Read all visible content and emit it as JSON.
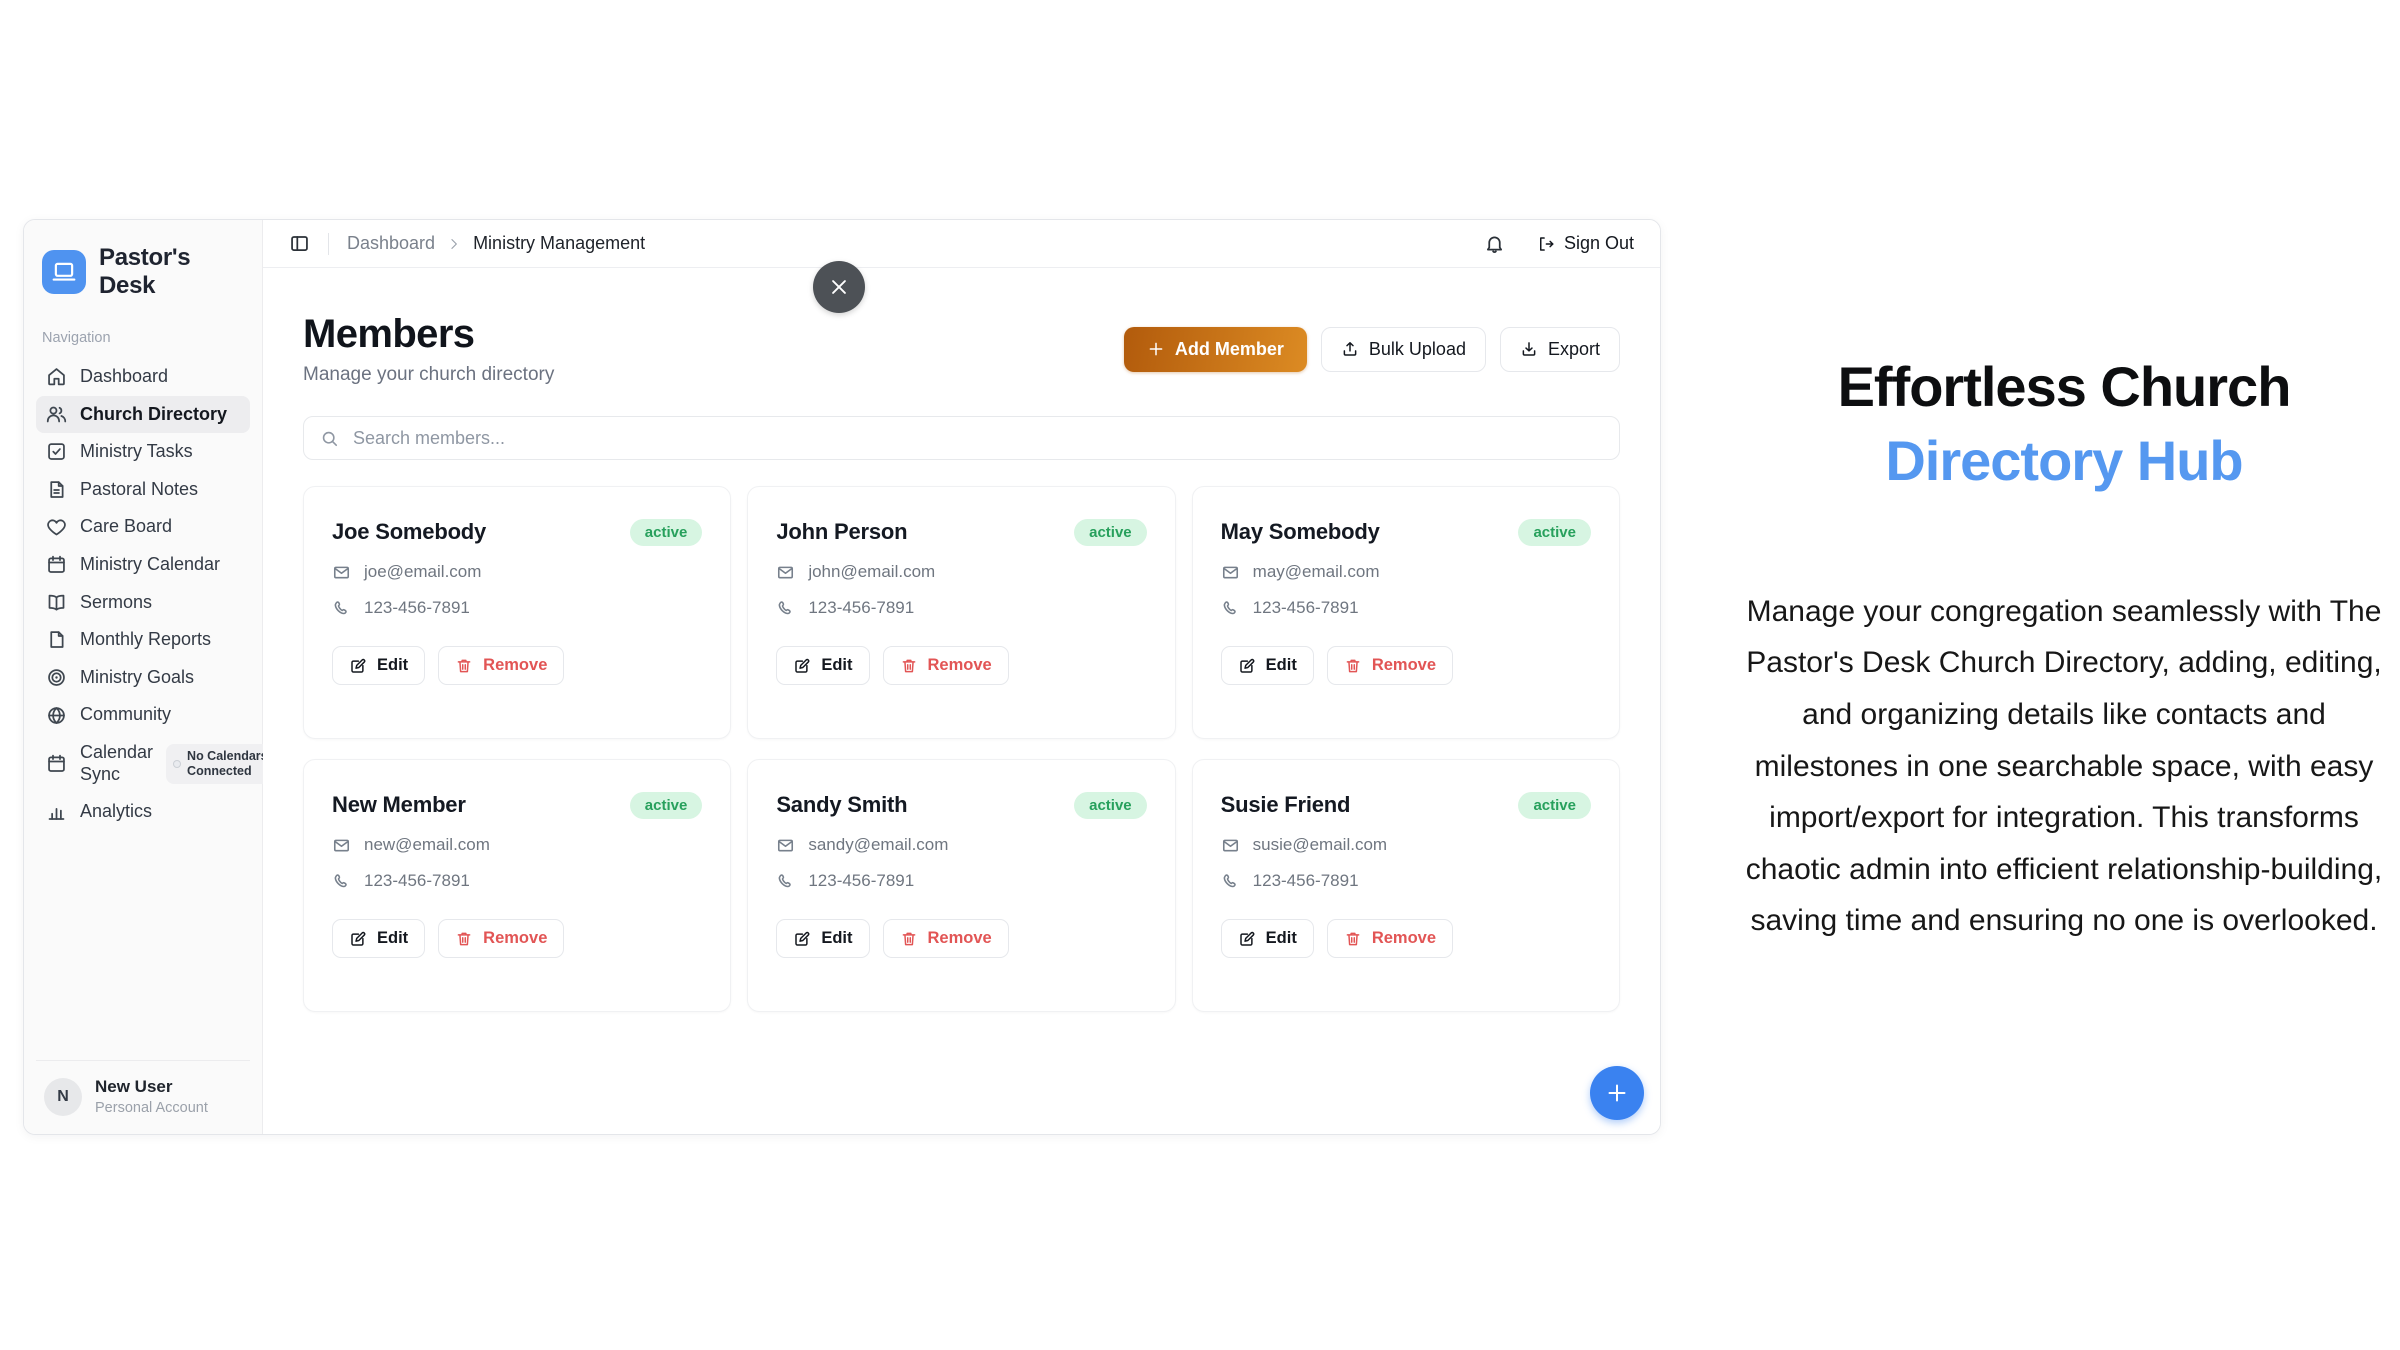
{
  "app": {
    "brand": {
      "name": "Pastor's Desk"
    },
    "sidebar": {
      "section_label": "Navigation",
      "items": [
        {
          "label": "Dashboard",
          "icon": "home",
          "active": false
        },
        {
          "label": "Church Directory",
          "icon": "users",
          "active": true
        },
        {
          "label": "Ministry Tasks",
          "icon": "check-square",
          "active": false
        },
        {
          "label": "Pastoral Notes",
          "icon": "note",
          "active": false
        },
        {
          "label": "Care Board",
          "icon": "heart",
          "active": false
        },
        {
          "label": "Ministry Calendar",
          "icon": "calendar",
          "active": false
        },
        {
          "label": "Sermons",
          "icon": "book",
          "active": false
        },
        {
          "label": "Monthly Reports",
          "icon": "file",
          "active": false
        },
        {
          "label": "Ministry Goals",
          "icon": "target",
          "active": false
        },
        {
          "label": "Community",
          "icon": "globe",
          "active": false
        },
        {
          "label": "Calendar Sync",
          "icon": "calendar",
          "active": false,
          "badge": "No Calendars Connected"
        },
        {
          "label": "Analytics",
          "icon": "bar-chart",
          "active": false
        }
      ],
      "user": {
        "initial": "N",
        "name": "New User",
        "account_type": "Personal Account"
      }
    },
    "header": {
      "breadcrumb": [
        "Dashboard",
        "Ministry Management"
      ],
      "sign_out_label": "Sign Out"
    },
    "page": {
      "title": "Members",
      "subtitle": "Manage your church directory",
      "actions": {
        "add_member": "Add Member",
        "bulk_upload": "Bulk Upload",
        "export": "Export"
      },
      "search_placeholder": "Search members...",
      "card_actions": {
        "edit": "Edit",
        "remove": "Remove"
      },
      "members": [
        {
          "name": "Joe Somebody",
          "email": "joe@email.com",
          "phone": "123-456-7891",
          "status": "active"
        },
        {
          "name": "John Person",
          "email": "john@email.com",
          "phone": "123-456-7891",
          "status": "active"
        },
        {
          "name": "May Somebody",
          "email": "may@email.com",
          "phone": "123-456-7891",
          "status": "active"
        },
        {
          "name": "New Member",
          "email": "new@email.com",
          "phone": "123-456-7891",
          "status": "active"
        },
        {
          "name": "Sandy Smith",
          "email": "sandy@email.com",
          "phone": "123-456-7891",
          "status": "active"
        },
        {
          "name": "Susie Friend",
          "email": "susie@email.com",
          "phone": "123-456-7891",
          "status": "active"
        }
      ]
    }
  },
  "marketing": {
    "title_line1": "Effortless Church",
    "title_line2": "Directory Hub",
    "body": "Manage your congregation seamlessly with The Pastor's Desk Church Directory, adding, editing, and organizing details like contacts and milestones in one searchable space, with easy import/export for integration. This transforms chaotic admin into efficient relationship-building, saving time and ensuring no one is overlooked."
  },
  "colors": {
    "brand_blue": "#4f93f0",
    "heading_blue": "#5598f0",
    "add_member_gradient_start": "#b25b0c",
    "add_member_gradient_end": "#dc8b23",
    "active_badge_bg": "#d7f5e2",
    "active_badge_text": "#27a05c",
    "remove_red": "#e25555",
    "fab_blue": "#3a82f0",
    "close_circle": "#4d5156"
  }
}
